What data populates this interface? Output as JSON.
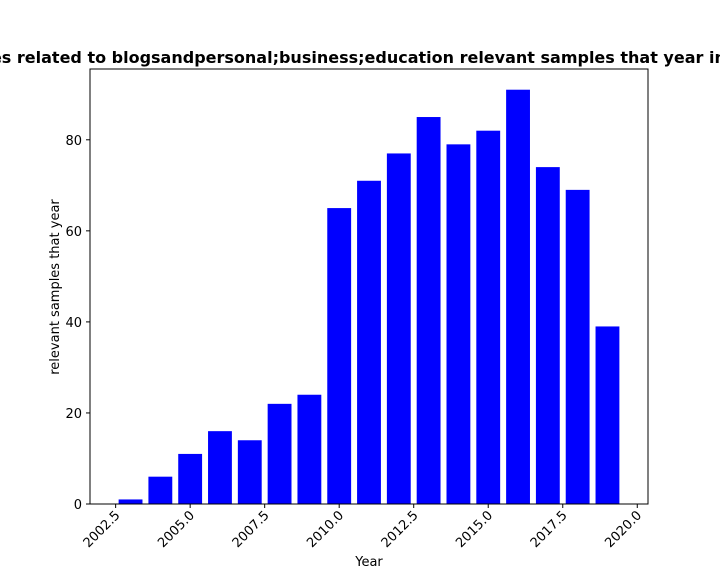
{
  "chart_data": {
    "type": "bar",
    "title": "Samples related to blogsandpersonal;business;education relevant samples that year in percent",
    "xlabel": "Year",
    "ylabel": "relevant samples that year",
    "x": [
      2003,
      2004,
      2005,
      2006,
      2007,
      2008,
      2009,
      2010,
      2011,
      2012,
      2013,
      2014,
      2015,
      2016,
      2017,
      2018,
      2019
    ],
    "values": [
      1,
      6,
      11,
      16,
      14,
      22,
      24,
      65,
      71,
      77,
      85,
      79,
      82,
      91,
      74,
      69,
      39
    ],
    "xlim": [
      2001.64,
      2020.36
    ],
    "ylim": [
      0,
      95.55
    ],
    "xticks": [
      2002.5,
      2005.0,
      2007.5,
      2010.0,
      2012.5,
      2015.0,
      2017.5,
      2020.0
    ],
    "xtick_labels": [
      "2002.5",
      "2005.0",
      "2007.5",
      "2010.0",
      "2012.5",
      "2015.0",
      "2017.5",
      "2020.0"
    ],
    "yticks": [
      0,
      20,
      40,
      60,
      80
    ],
    "ytick_labels": [
      "0",
      "20",
      "40",
      "60",
      "80"
    ],
    "bar_color": "#0000ff",
    "grid": false,
    "legend": "none"
  }
}
